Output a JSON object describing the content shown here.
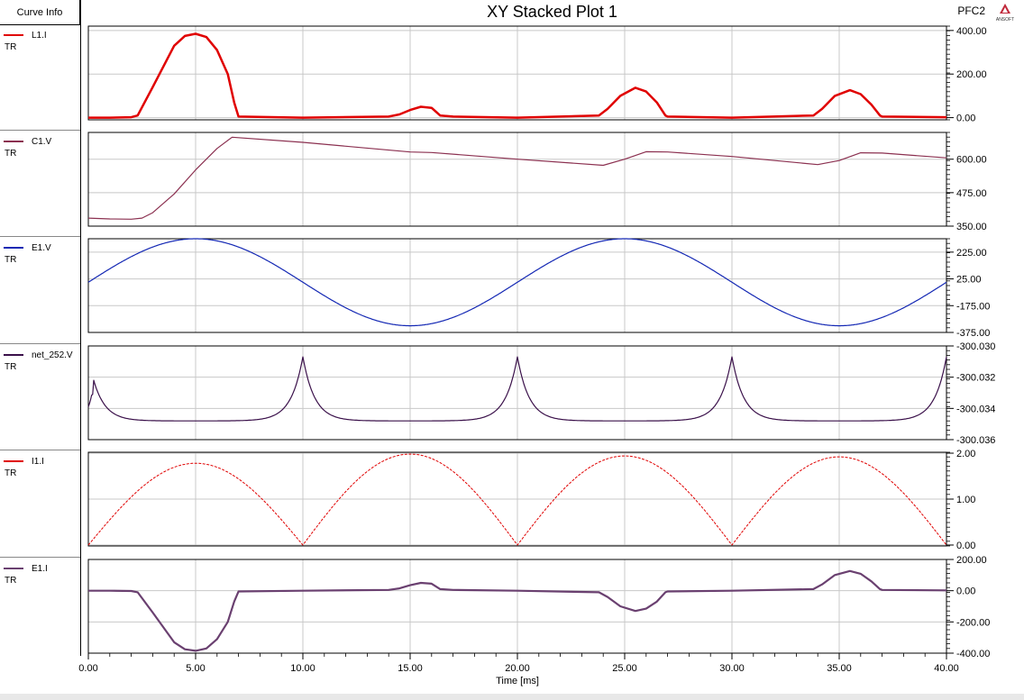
{
  "header": {
    "curve_info_label": "Curve Info",
    "title": "XY Stacked Plot 1",
    "project": "PFC2",
    "logo_text": "ANSOFT"
  },
  "chart_data": {
    "type": "line",
    "title": "XY Stacked Plot 1",
    "xlabel": "Time [ms]",
    "xlim": [
      0,
      40
    ],
    "xticks": [
      "0.00",
      "5.00",
      "10.00",
      "15.00",
      "20.00",
      "25.00",
      "30.00",
      "35.00",
      "40.00"
    ],
    "grid": true,
    "panels": [
      {
        "name": "L1.I",
        "sub": "TR",
        "color": "#e00000",
        "width": 2.5,
        "ylim": [
          -10,
          420
        ],
        "yticks": [
          {
            "v": 400,
            "t": "400.00"
          },
          {
            "v": 200,
            "t": "200.00"
          },
          {
            "v": 0,
            "t": "0.00"
          }
        ],
        "x": [
          0,
          1,
          2,
          2.3,
          3,
          4,
          4.5,
          5,
          5.5,
          6,
          6.5,
          6.8,
          7,
          10,
          14,
          14.5,
          15,
          15.5,
          16,
          16.4,
          17,
          20,
          23.8,
          24.2,
          24.8,
          25.5,
          26,
          26.5,
          26.9,
          27,
          30,
          33.8,
          34.2,
          34.8,
          35.5,
          36,
          36.5,
          36.9,
          37,
          40
        ],
        "y": [
          0,
          0,
          2,
          10,
          140,
          330,
          375,
          385,
          370,
          310,
          200,
          70,
          5,
          0,
          5,
          15,
          35,
          50,
          45,
          10,
          5,
          0,
          10,
          40,
          100,
          137,
          120,
          70,
          10,
          5,
          0,
          10,
          40,
          100,
          126,
          108,
          60,
          10,
          5,
          2
        ]
      },
      {
        "name": "C1.V",
        "sub": "TR",
        "color": "#8b3050",
        "width": 1.2,
        "ylim": [
          350,
          700
        ],
        "yticks": [
          {
            "v": 600,
            "t": "600.00"
          },
          {
            "v": 475,
            "t": "475.00"
          },
          {
            "v": 350,
            "t": "350.00"
          }
        ],
        "x": [
          0,
          1,
          2,
          2.5,
          3,
          4,
          5,
          6,
          6.7,
          10,
          15,
          16,
          20,
          24,
          25,
          26,
          27,
          30,
          34,
          35,
          36,
          37,
          40
        ],
        "y": [
          380,
          377,
          376,
          380,
          400,
          470,
          560,
          640,
          682,
          663,
          627,
          625,
          600,
          577,
          600,
          628,
          627,
          610,
          580,
          595,
          624,
          623,
          605
        ]
      },
      {
        "name": "E1.V",
        "sub": "TR",
        "color": "#1428b4",
        "width": 1.2,
        "ylim": [
          -375,
          325
        ],
        "yticks": [
          {
            "v": 225,
            "t": "225.00"
          },
          {
            "v": 25,
            "t": "25.00"
          },
          {
            "v": -175,
            "t": "-175.00"
          },
          {
            "v": -375,
            "t": "-375.00"
          }
        ],
        "fn": "sine",
        "amp": 325,
        "period": 20
      },
      {
        "name": "net_252.V",
        "sub": "TR",
        "color": "#3a104a",
        "width": 1.2,
        "ylim": [
          -300.036,
          -300.03
        ],
        "yticks": [
          {
            "v": -300.03,
            "t": "-300.030"
          },
          {
            "v": -300.032,
            "t": "-300.032"
          },
          {
            "v": -300.034,
            "t": "-300.034"
          },
          {
            "v": -300.036,
            "t": "-300.036"
          }
        ],
        "fn": "cusp",
        "base": -300.0348,
        "peak": -300.0307,
        "period": 10
      },
      {
        "name": "I1.I",
        "sub": "TR",
        "color": "#e00000",
        "width": 1.0,
        "dashed": true,
        "ylim": [
          -0.02,
          2.02
        ],
        "yticks": [
          {
            "v": 2,
            "t": "2.00"
          },
          {
            "v": 1,
            "t": "1.00"
          },
          {
            "v": 0,
            "t": "0.00"
          }
        ],
        "fn": "absine",
        "amps": [
          1.78,
          1.98,
          1.94,
          1.92
        ],
        "period": 20
      },
      {
        "name": "E1.I",
        "sub": "TR",
        "color": "#6a4070",
        "width": 2.2,
        "ylim": [
          -400,
          200
        ],
        "yticks": [
          {
            "v": 200,
            "t": "200.00"
          },
          {
            "v": 0,
            "t": "0.00"
          },
          {
            "v": -200,
            "t": "-200.00"
          },
          {
            "v": -400,
            "t": "-400.00"
          }
        ],
        "x": [
          0,
          1,
          2,
          2.3,
          3,
          4,
          4.5,
          5,
          5.5,
          6,
          6.5,
          6.8,
          7,
          10,
          14,
          14.5,
          15,
          15.5,
          16,
          16.4,
          17,
          20,
          23.8,
          24.2,
          24.8,
          25.5,
          26,
          26.5,
          26.9,
          27,
          30,
          33.8,
          34.2,
          34.8,
          35.5,
          36,
          36.5,
          36.9,
          37,
          40
        ],
        "y": [
          0,
          0,
          -2,
          -10,
          -140,
          -330,
          -375,
          -385,
          -370,
          -310,
          -200,
          -70,
          -5,
          0,
          5,
          15,
          35,
          50,
          45,
          10,
          5,
          0,
          -10,
          -40,
          -100,
          -130,
          -115,
          -70,
          -10,
          -5,
          0,
          10,
          40,
          100,
          126,
          108,
          60,
          10,
          5,
          2
        ]
      }
    ]
  }
}
